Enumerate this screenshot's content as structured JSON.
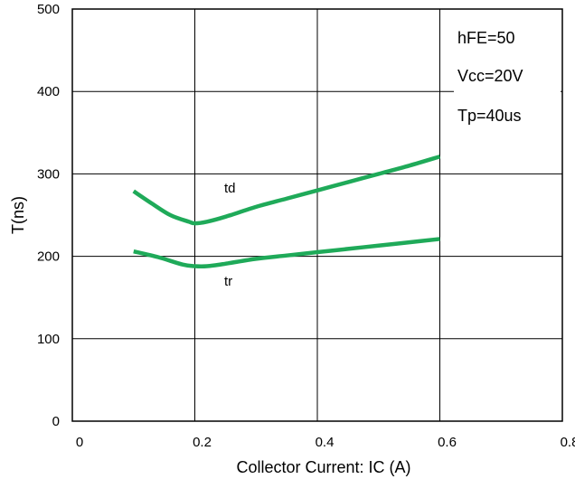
{
  "chart_data": {
    "type": "line",
    "xlabel": "Collector Current: IC (A)",
    "ylabel": "T(ns)",
    "xlim": [
      0,
      0.8
    ],
    "ylim": [
      0,
      500
    ],
    "x_ticks": [
      "0",
      "0.2",
      "0.4",
      "0.6",
      "0.8"
    ],
    "y_ticks": [
      "0",
      "100",
      "200",
      "300",
      "400",
      "500"
    ],
    "grid": true,
    "line_color": "#1faa59",
    "annotations": [
      "hFE=50",
      "Vcc=20V",
      "Tp=40us"
    ],
    "series": [
      {
        "name": "td",
        "x": [
          0.1,
          0.13,
          0.16,
          0.19,
          0.2,
          0.22,
          0.25,
          0.3,
          0.35,
          0.4,
          0.45,
          0.5,
          0.55,
          0.6
        ],
        "y": [
          279,
          264,
          250,
          242,
          240,
          242,
          248,
          260,
          270,
          280,
          290,
          300,
          310,
          321
        ]
      },
      {
        "name": "tr",
        "x": [
          0.1,
          0.14,
          0.18,
          0.2,
          0.22,
          0.25,
          0.3,
          0.35,
          0.4,
          0.45,
          0.5,
          0.55,
          0.6
        ],
        "y": [
          206,
          199,
          190,
          188,
          188,
          191,
          197,
          201,
          205,
          209,
          213,
          217,
          221
        ]
      }
    ]
  }
}
